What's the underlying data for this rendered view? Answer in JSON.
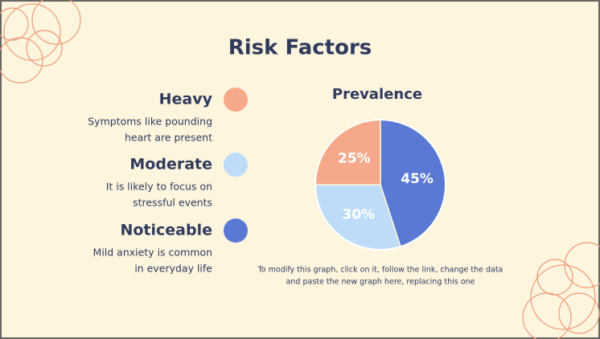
{
  "title": "Risk Factors",
  "descriptions": [
    [
      "Symptoms like pounding",
      "heart are present"
    ],
    [
      "It is likely to focus on",
      "stressful events"
    ],
    [
      "Mild anxiety is common",
      "in everyday life"
    ]
  ],
  "note": [
    "To modify this graph, click on it, follow the link, change the data",
    "and paste the new graph here, replacing this one"
  ],
  "chart_data": {
    "type": "pie",
    "title": "Prevalence",
    "categories": [
      "Heavy",
      "Moderate",
      "Noticeable"
    ],
    "values": [
      25,
      30,
      45
    ],
    "value_labels": [
      "25%",
      "30%",
      "45%"
    ],
    "colors": [
      "#f6a98a",
      "#bedcf8",
      "#5a79d4"
    ]
  }
}
